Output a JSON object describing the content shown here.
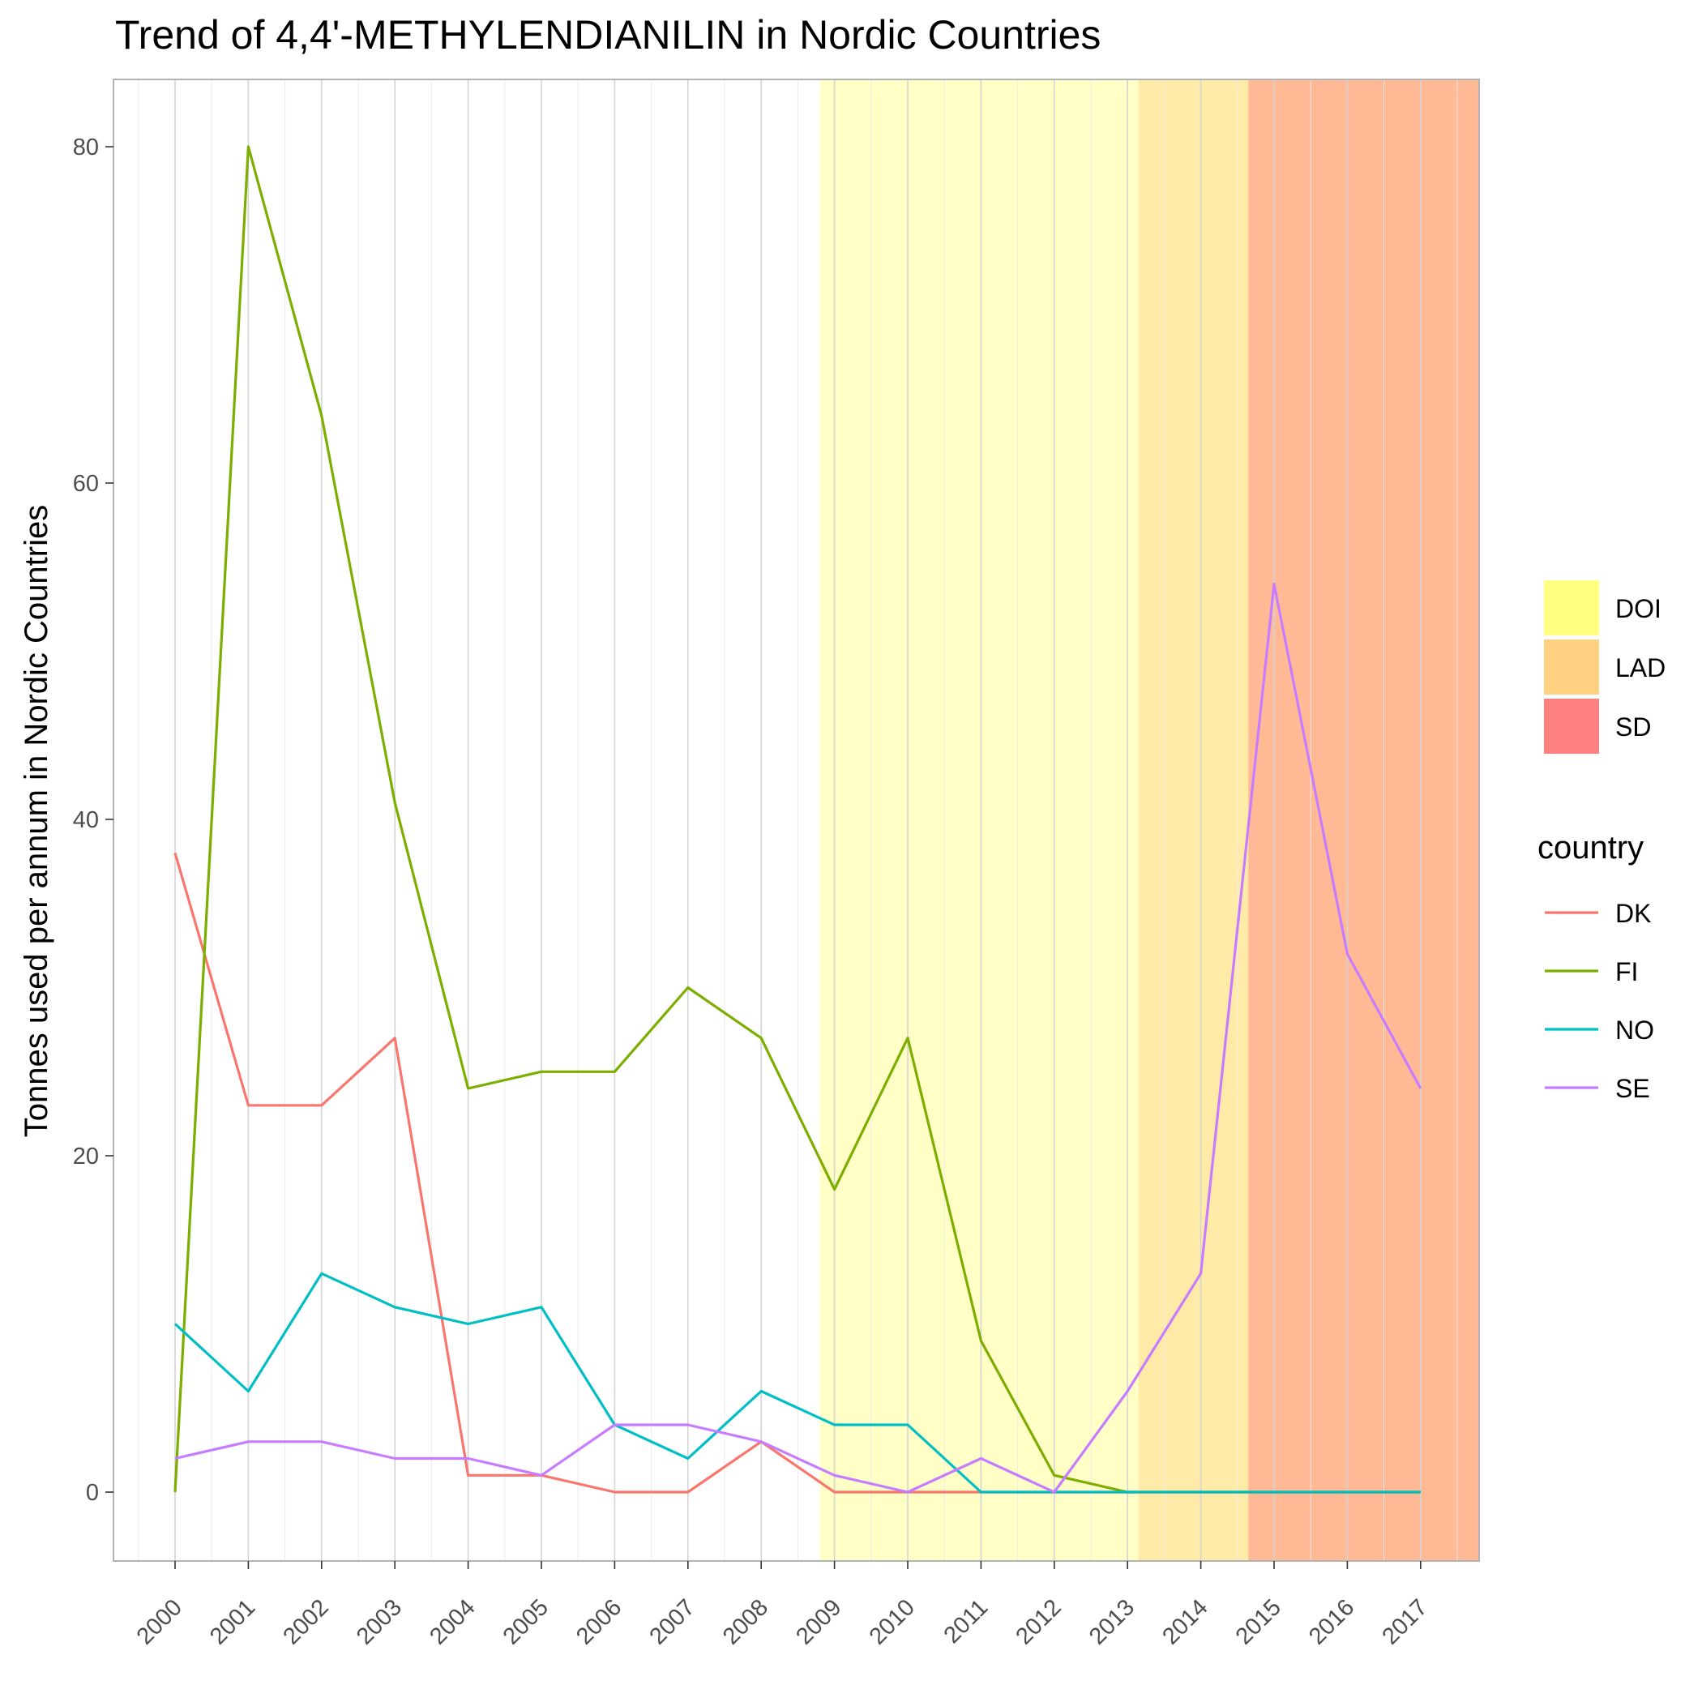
{
  "chart_data": {
    "type": "line",
    "title": "Trend of 4,4'-METHYLENDIANILIN in Nordic Countries",
    "xlabel": "",
    "ylabel": "Tonnes used per annum in Nordic Countries",
    "x": [
      "2000",
      "2001",
      "2002",
      "2003",
      "2004",
      "2005",
      "2006",
      "2007",
      "2008",
      "2009",
      "2010",
      "2011",
      "2012",
      "2013",
      "2014",
      "2015",
      "2016",
      "2017"
    ],
    "ylim": [
      -4,
      84
    ],
    "yticks": [
      0,
      20,
      40,
      60,
      80
    ],
    "grid": true,
    "legend_position": "right",
    "series": [
      {
        "name": "DK",
        "color": "#F8766D",
        "values": [
          38,
          23,
          23,
          27,
          1,
          1,
          0,
          0,
          3,
          0,
          0,
          0,
          0,
          0,
          0,
          0,
          0,
          0
        ]
      },
      {
        "name": "FI",
        "color": "#7CAE00",
        "values": [
          0,
          80,
          64,
          41,
          24,
          25,
          25,
          30,
          27,
          18,
          27,
          9,
          1,
          0,
          0,
          0,
          0,
          0
        ]
      },
      {
        "name": "NO",
        "color": "#00BFC4",
        "values": [
          10,
          6,
          13,
          11,
          10,
          11,
          4,
          2,
          6,
          4,
          4,
          0,
          0,
          0,
          0,
          0,
          0,
          0
        ]
      },
      {
        "name": "SE",
        "color": "#C77CFF",
        "values": [
          2,
          3,
          3,
          2,
          2,
          1,
          4,
          4,
          3,
          1,
          0,
          2,
          0,
          6,
          13,
          54,
          32,
          24
        ]
      }
    ],
    "shaded_regions": [
      {
        "name": "DOI",
        "color": "#FFFF80",
        "from": 2008.8,
        "to": 2017.8
      },
      {
        "name": "LAD",
        "color": "#FFD180",
        "from": 2013.15,
        "to": 2017.8
      },
      {
        "name": "SD",
        "color": "#FF8080",
        "from": 2014.65,
        "to": 2017.8
      }
    ],
    "fill_legend": [
      "DOI",
      "LAD",
      "SD"
    ],
    "color_legend_title": "country"
  }
}
